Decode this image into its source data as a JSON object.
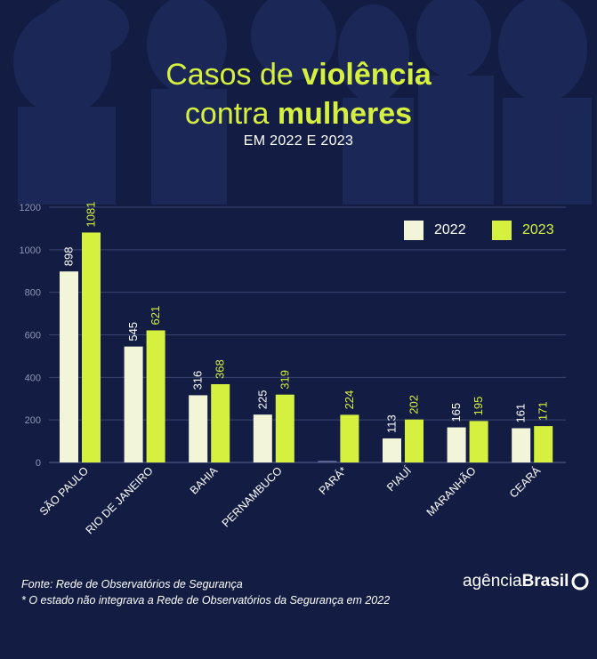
{
  "header": {
    "title_part1": "Casos de ",
    "title_bold1": "violência",
    "title_part2": "contra ",
    "title_bold2": "mulheres",
    "subtitle": "EM 2022 E 2023"
  },
  "chart_data": {
    "type": "bar",
    "categories": [
      "SÃO PAULO",
      "RIO DE JANEIRO",
      "BAHIA",
      "PERNAMBUCO",
      "PARÁ*",
      "PIAUÍ",
      "MARANHÃO",
      "CEARÁ"
    ],
    "series": [
      {
        "name": "2022",
        "values": [
          898,
          545,
          316,
          225,
          null,
          113,
          165,
          161
        ],
        "labels": [
          "898",
          "545",
          "316",
          "225",
          "",
          "113",
          "165",
          "161"
        ],
        "color": "#f2f5d8"
      },
      {
        "name": "2023",
        "values": [
          1081,
          621,
          368,
          319,
          224,
          202,
          195,
          171
        ],
        "labels": [
          "1081",
          "621",
          "368",
          "319",
          "224",
          "202",
          "195",
          "171"
        ],
        "color": "#d6f040"
      }
    ],
    "y_ticks": [
      "0",
      "200",
      "400",
      "600",
      "800",
      "1000",
      "1200"
    ],
    "ylim": [
      0,
      1200
    ],
    "grid": true,
    "legend_position": "top-right"
  },
  "footer": {
    "source": "Fonte: Rede de Observatórios de Segurança",
    "note": "* O estado não integrava a Rede de Observatórios da Segurança em 2022"
  },
  "logo": {
    "part1": "agência",
    "part2": "Brasil"
  },
  "colors": {
    "background": "#131d44",
    "accent": "#d6f040",
    "light": "#f2f5d8",
    "grid": "#3a4470"
  }
}
